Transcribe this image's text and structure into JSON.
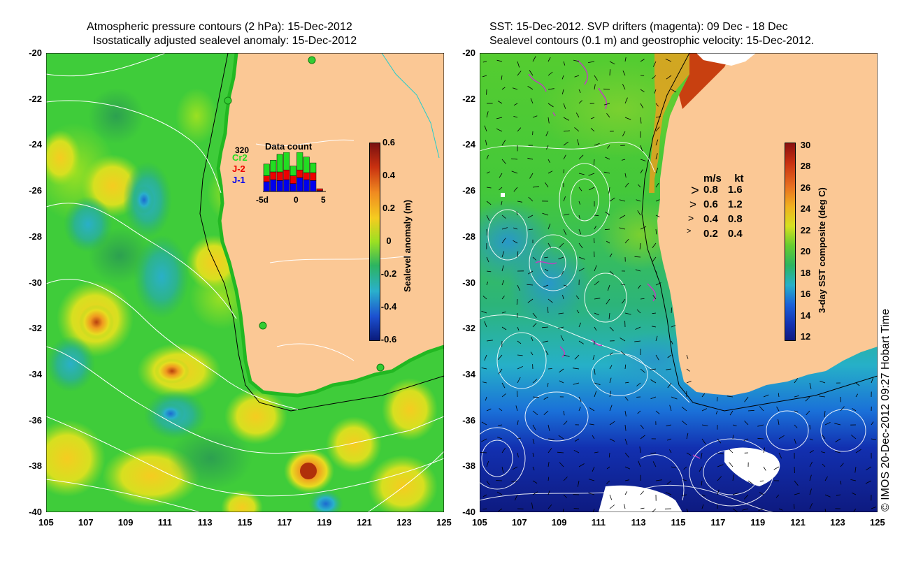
{
  "left_panel": {
    "title_line1": "Atmospheric pressure contours (2 hPa): 15-Dec-2012",
    "title_line2": "Isostatically adjusted sealevel anomaly: 15-Dec-2012",
    "colorbar_label": "Sealevel anomaly (m)",
    "colorbar_ticks": [
      "0.6",
      "0.4",
      "0.2",
      "0",
      "-0.2",
      "-0.4",
      "-0.6"
    ],
    "data_count": {
      "title": "Data count",
      "count_label": "320",
      "sat_labels": [
        {
          "text": "Cr2",
          "color": "#22dd22"
        },
        {
          "text": "J-2",
          "color": "#ee0000"
        },
        {
          "text": "J-1",
          "color": "#0000ee"
        }
      ],
      "x_ticks": [
        "-5d",
        "0",
        "5"
      ],
      "bars": [
        {
          "j1": 0.25,
          "j2": 0.15,
          "cr2": 0.3
        },
        {
          "j1": 0.3,
          "j2": 0.2,
          "cr2": 0.3
        },
        {
          "j1": 0.28,
          "j2": 0.22,
          "cr2": 0.45
        },
        {
          "j1": 0.3,
          "j2": 0.25,
          "cr2": 0.45
        },
        {
          "j1": 0.2,
          "j2": 0.2,
          "cr2": 0.25
        },
        {
          "j1": 0.35,
          "j2": 0.2,
          "cr2": 0.45
        },
        {
          "j1": 0.3,
          "j2": 0.18,
          "cr2": 0.4
        },
        {
          "j1": 0.28,
          "j2": 0.2,
          "cr2": 0.25
        },
        {
          "j1": 0.02,
          "j2": 0.05,
          "cr2": 0.0
        }
      ]
    }
  },
  "right_panel": {
    "title_line1": "SST: 15-Dec-2012. SVP drifters (magenta): 09 Dec - 18 Dec",
    "title_line2": "Sealevel contours (0.1 m) and geostrophic velocity: 15-Dec-2012.",
    "colorbar_label": "3-day SST composite (deg C)",
    "colorbar_ticks": [
      "30",
      "28",
      "26",
      "24",
      "22",
      "20",
      "18",
      "16",
      "14",
      "12"
    ],
    "velocity_legend": {
      "headers": [
        "m/s",
        "kt"
      ],
      "rows": [
        [
          "0.8",
          "1.6"
        ],
        [
          "0.6",
          "1.2"
        ],
        [
          "0.4",
          "0.8"
        ],
        [
          "0.2",
          "0.4"
        ]
      ]
    }
  },
  "axes": {
    "y_ticks": [
      "-20",
      "-22",
      "-24",
      "-26",
      "-28",
      "-30",
      "-32",
      "-34",
      "-36",
      "-38",
      "-40"
    ],
    "x_ticks": [
      "105",
      "107",
      "109",
      "111",
      "113",
      "115",
      "117",
      "119",
      "121",
      "123",
      "125"
    ]
  },
  "credit": "© IMOS 20-Dec-2012 09:27 Hobart Time",
  "colors": {
    "land": "#fbc895",
    "sealevel_anomaly_base": "#33cc33",
    "sst_warm": "#44cc33",
    "sst_cold": "#101a8c"
  }
}
